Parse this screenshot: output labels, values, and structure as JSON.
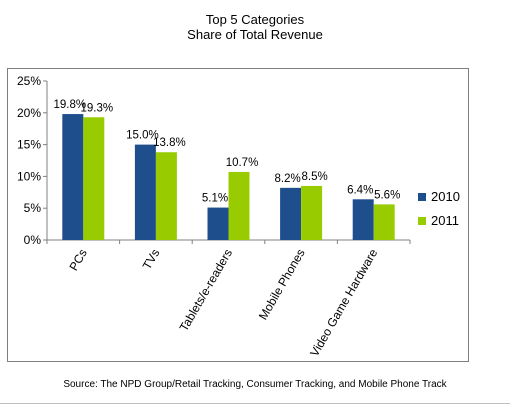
{
  "chart_data": {
    "type": "bar",
    "title_line1": "Top 5 Categories",
    "title_line2": "Share of Total Revenue",
    "categories": [
      "PCs",
      "TVs",
      "Tablets/e-readers",
      "Mobile Phones",
      "Video Game Hardware"
    ],
    "series": [
      {
        "name": "2010",
        "color": "#1f4e8c",
        "values": [
          19.8,
          15.0,
          5.1,
          8.2,
          6.4
        ],
        "labels": [
          "19.8%",
          "15.0%",
          "5.1%",
          "8.2%",
          "6.4%"
        ]
      },
      {
        "name": "2011",
        "color": "#99cc00",
        "values": [
          19.3,
          13.8,
          10.7,
          8.5,
          5.6
        ],
        "labels": [
          "19.3%",
          "13.8%",
          "10.7%",
          "8.5%",
          "5.6%"
        ]
      }
    ],
    "ylim": [
      0,
      25
    ],
    "yticks": [
      0,
      5,
      10,
      15,
      20,
      25
    ],
    "ytick_labels": [
      "0%",
      "5%",
      "10%",
      "15%",
      "20%",
      "25%"
    ],
    "grid": false,
    "legend_position": "right"
  },
  "source": "Source: The NPD Group/Retail Tracking, Consumer Tracking, and Mobile Phone Track"
}
